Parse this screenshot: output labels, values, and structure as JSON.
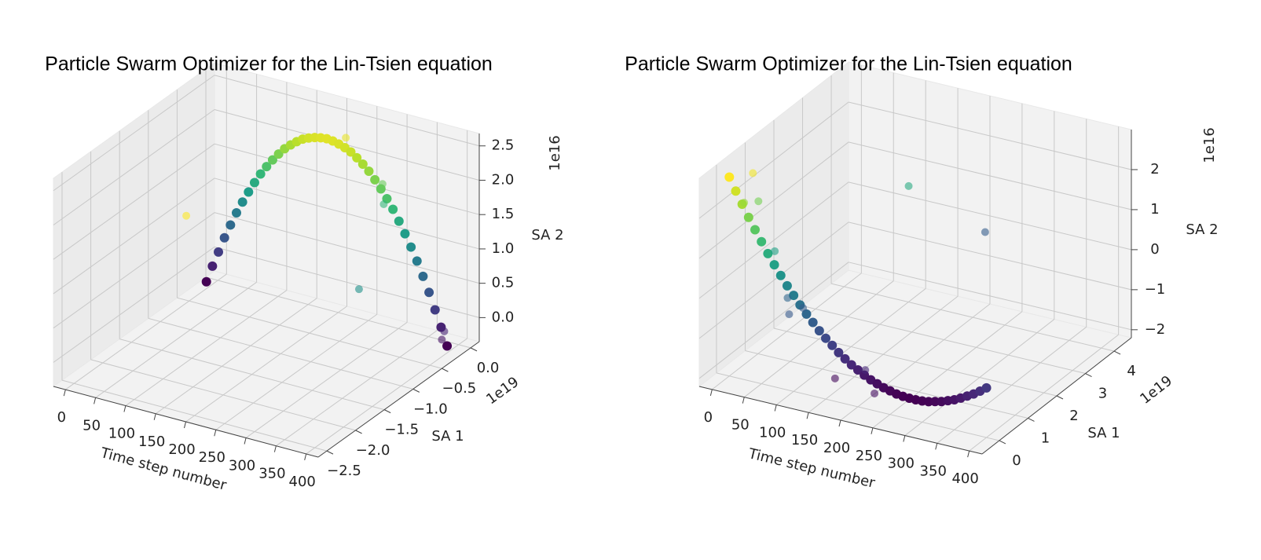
{
  "chart_data": [
    {
      "type": "scatter3d",
      "title": "Particle Swarm Optimizer for the Lin-Tsien equation",
      "xlabel": "Time step number",
      "ylabel": "SA 1",
      "zlabel": "SA 2",
      "yoffset": "1e19",
      "zoffset": "1e16",
      "colormap": "viridis",
      "xlim": [
        -20,
        420
      ],
      "ylim": [
        -2.65,
        0.15
      ],
      "zlim": [
        -0.35,
        2.68
      ],
      "xticks": [
        0,
        50,
        100,
        150,
        200,
        250,
        300,
        350,
        400
      ],
      "yticks": [
        {
          "value": -2.5,
          "label": "−2.5"
        },
        {
          "value": -2.0,
          "label": "−2.0"
        },
        {
          "value": -1.5,
          "label": "−1.5"
        },
        {
          "value": -1.0,
          "label": "−1.0"
        },
        {
          "value": -0.5,
          "label": "−0.5"
        },
        {
          "value": 0.0,
          "label": "0.0"
        }
      ],
      "zticks": [
        {
          "value": 0.0,
          "label": "0.0"
        },
        0.5,
        {
          "value": 1.0,
          "label": "1.0"
        },
        1.5,
        {
          "value": 2.0,
          "label": "2.0"
        },
        2.5
      ],
      "curve": {
        "x": [
          0,
          10,
          20,
          30,
          40,
          50,
          60,
          70,
          80,
          90,
          100,
          110,
          120,
          130,
          140,
          150,
          160,
          170,
          180,
          190,
          200,
          210,
          220,
          230,
          240,
          250,
          260,
          270,
          280,
          290,
          300,
          310,
          320,
          330,
          340,
          350,
          360,
          370,
          380,
          390,
          400
        ],
        "y": [
          -0.2,
          -0.2,
          -0.2,
          -0.2,
          -0.2,
          -0.2,
          -0.2,
          -0.2,
          -0.2,
          -0.2,
          -0.2,
          -0.2,
          -0.2,
          -0.2,
          -0.2,
          -0.2,
          -0.2,
          -0.2,
          -0.2,
          -0.2,
          -0.2,
          -0.2,
          -0.2,
          -0.2,
          -0.2,
          -0.2,
          -0.2,
          -0.2,
          -0.2,
          -0.2,
          -0.2,
          -0.2,
          -0.2,
          -0.2,
          -0.2,
          -0.2,
          -0.2,
          -0.2,
          -0.2,
          -0.2,
          -0.2
        ],
        "z": [
          -0.25,
          0.0,
          0.23,
          0.46,
          0.67,
          0.87,
          1.05,
          1.22,
          1.38,
          1.53,
          1.66,
          1.78,
          1.89,
          1.99,
          2.07,
          2.14,
          2.2,
          2.24,
          2.27,
          2.29,
          2.3,
          2.29,
          2.27,
          2.24,
          2.2,
          2.14,
          2.07,
          1.99,
          1.89,
          1.78,
          1.66,
          1.53,
          1.38,
          1.22,
          1.05,
          0.87,
          0.67,
          0.46,
          0.23,
          0.0,
          -0.25
        ]
      },
      "points": {
        "alpha": 0.6,
        "x": [
          174,
          225,
          286,
          288,
          354,
          402,
          398
        ],
        "y": [
          -2.37,
          -0.13,
          -0.13,
          -0.13,
          -1.25,
          -0.27,
          -0.27
        ],
        "z": [
          2.42,
          2.33,
          1.8,
          1.51,
          1.1,
          0.01,
          -0.12
        ]
      }
    },
    {
      "type": "scatter3d",
      "title": "Particle Swarm Optimizer for the Lin-Tsien equation",
      "xlabel": "Time step number",
      "ylabel": "SA 1",
      "zlabel": "SA 2",
      "yoffset": "1e19",
      "zoffset": "1e16",
      "colormap": "viridis",
      "xlim": [
        -20,
        420
      ],
      "ylim": [
        -0.6,
        4.6
      ],
      "zlim": [
        -2.2,
        3.0
      ],
      "xticks": [
        0,
        50,
        100,
        150,
        200,
        250,
        300,
        350,
        400
      ],
      "yticks": [
        0,
        1,
        2,
        3,
        4
      ],
      "zticks": [
        {
          "value": -2,
          "label": "−2"
        },
        {
          "value": -1,
          "label": "−1"
        },
        0,
        1,
        2
      ],
      "curve": {
        "x": [
          0,
          10,
          20,
          30,
          40,
          50,
          60,
          70,
          80,
          90,
          100,
          110,
          120,
          130,
          140,
          150,
          160,
          170,
          180,
          190,
          200,
          210,
          220,
          230,
          240,
          250,
          260,
          270,
          280,
          290,
          300,
          310,
          320,
          330,
          340,
          350,
          360,
          370,
          380,
          390,
          400
        ],
        "y": [
          0,
          0,
          0,
          0,
          0,
          0,
          0,
          0,
          0,
          0,
          0,
          0,
          0,
          0,
          0,
          0,
          0,
          0,
          0,
          0,
          0,
          0,
          0,
          0,
          0,
          0,
          0,
          0,
          0,
          0,
          0,
          0,
          0,
          0,
          0,
          0,
          0,
          0,
          0,
          0,
          0
        ],
        "z": [
          2.77,
          2.46,
          2.17,
          1.88,
          1.61,
          1.35,
          1.09,
          0.85,
          0.62,
          0.4,
          0.2,
          0.0,
          -0.19,
          -0.36,
          -0.53,
          -0.68,
          -0.82,
          -0.96,
          -1.08,
          -1.19,
          -1.28,
          -1.37,
          -1.45,
          -1.51,
          -1.57,
          -1.61,
          -1.65,
          -1.67,
          -1.68,
          -1.68,
          -1.67,
          -1.65,
          -1.61,
          -1.57,
          -1.51,
          -1.45,
          -1.37,
          -1.28,
          -1.19,
          -1.08,
          -0.96
        ]
      },
      "points": {
        "alpha": 0.6,
        "x": [
          17,
          14,
          15,
          51,
          71,
          85,
          95,
          120,
          197,
          168,
          215,
          241
        ],
        "y": [
          0.44,
          0.7,
          0.18,
          0.44,
          0.44,
          0.18,
          0.44,
          3.56,
          4.5,
          -0.08,
          -0.08,
          -0.34
        ],
        "z": [
          2.69,
          1.83,
          2.09,
          0.87,
          -0.22,
          -0.43,
          -0.38,
          1.02,
          -0.36,
          -1.57,
          -1.18,
          -1.52
        ]
      }
    }
  ]
}
